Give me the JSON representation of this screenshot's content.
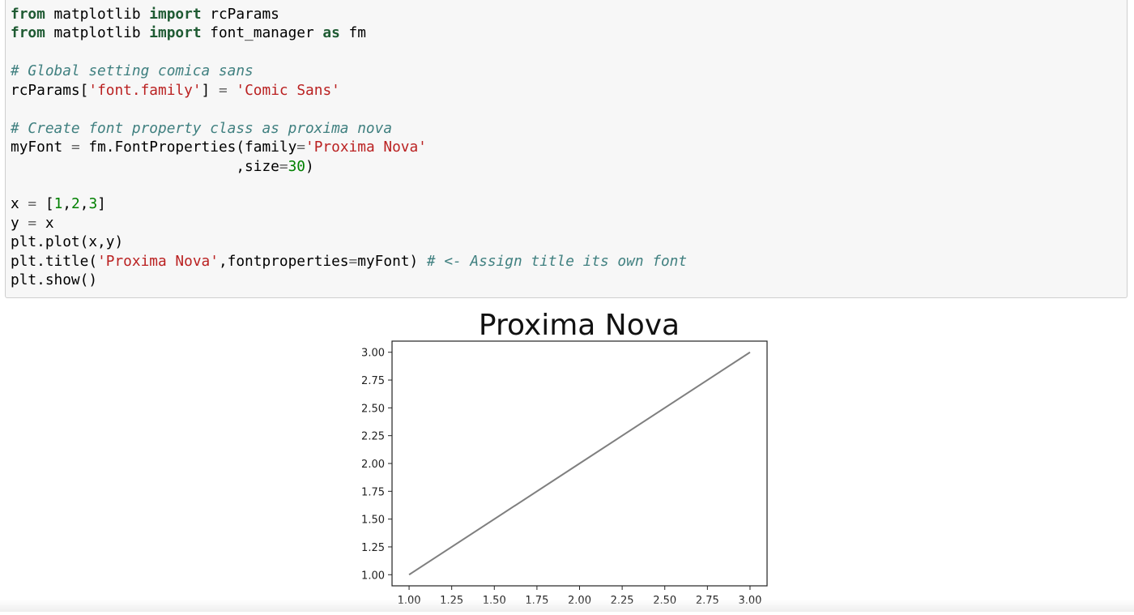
{
  "code_cell": {
    "lines": [
      [
        {
          "t": "from",
          "c": "kw"
        },
        {
          "t": " matplotlib "
        },
        {
          "t": "import",
          "c": "kw"
        },
        {
          "t": " rcParams"
        }
      ],
      [
        {
          "t": "from",
          "c": "kw"
        },
        {
          "t": " matplotlib "
        },
        {
          "t": "import",
          "c": "kw"
        },
        {
          "t": " font_manager "
        },
        {
          "t": "as",
          "c": "kw"
        },
        {
          "t": " fm"
        }
      ],
      [],
      [
        {
          "t": "# Global setting comica sans",
          "c": "cm"
        }
      ],
      [
        {
          "t": "rcParams["
        },
        {
          "t": "'font.family'",
          "c": "str"
        },
        {
          "t": "] "
        },
        {
          "t": "=",
          "c": "op"
        },
        {
          "t": " "
        },
        {
          "t": "'Comic Sans'",
          "c": "str"
        }
      ],
      [],
      [
        {
          "t": "# Create font property class as proxima nova",
          "c": "cm"
        }
      ],
      [
        {
          "t": "myFont "
        },
        {
          "t": "=",
          "c": "op"
        },
        {
          "t": " fm.FontProperties(family"
        },
        {
          "t": "=",
          "c": "op"
        },
        {
          "t": "'Proxima Nova'",
          "c": "str"
        }
      ],
      [
        {
          "t": "                          ,size"
        },
        {
          "t": "=",
          "c": "op"
        },
        {
          "t": "30",
          "c": "num"
        },
        {
          "t": ")"
        }
      ],
      [],
      [
        {
          "t": "x "
        },
        {
          "t": "=",
          "c": "op"
        },
        {
          "t": " ["
        },
        {
          "t": "1",
          "c": "num"
        },
        {
          "t": ","
        },
        {
          "t": "2",
          "c": "num"
        },
        {
          "t": ","
        },
        {
          "t": "3",
          "c": "num"
        },
        {
          "t": "]"
        }
      ],
      [
        {
          "t": "y "
        },
        {
          "t": "=",
          "c": "op"
        },
        {
          "t": " x"
        }
      ],
      [
        {
          "t": "plt.plot(x,y)"
        }
      ],
      [
        {
          "t": "plt.title("
        },
        {
          "t": "'Proxima Nova'",
          "c": "str"
        },
        {
          "t": ",fontproperties"
        },
        {
          "t": "=",
          "c": "op"
        },
        {
          "t": "myFont) "
        },
        {
          "t": "# <- Assign title its own font",
          "c": "cm"
        }
      ],
      [
        {
          "t": "plt.show()"
        }
      ]
    ]
  },
  "chart_data": {
    "type": "line",
    "title": "Proxima Nova",
    "x": [
      1,
      2,
      3
    ],
    "series": [
      {
        "values": [
          1,
          2,
          3
        ],
        "color": "#7f7f7f"
      }
    ],
    "xlim": [
      0.9,
      3.1
    ],
    "ylim": [
      0.9,
      3.1
    ],
    "xticks": [
      "1.00",
      "1.25",
      "1.50",
      "1.75",
      "2.00",
      "2.25",
      "2.50",
      "2.75",
      "3.00"
    ],
    "yticks": [
      "1.00",
      "1.25",
      "1.50",
      "1.75",
      "2.00",
      "2.25",
      "2.50",
      "2.75",
      "3.00"
    ],
    "xlabel": "",
    "ylabel": "",
    "grid": false
  }
}
